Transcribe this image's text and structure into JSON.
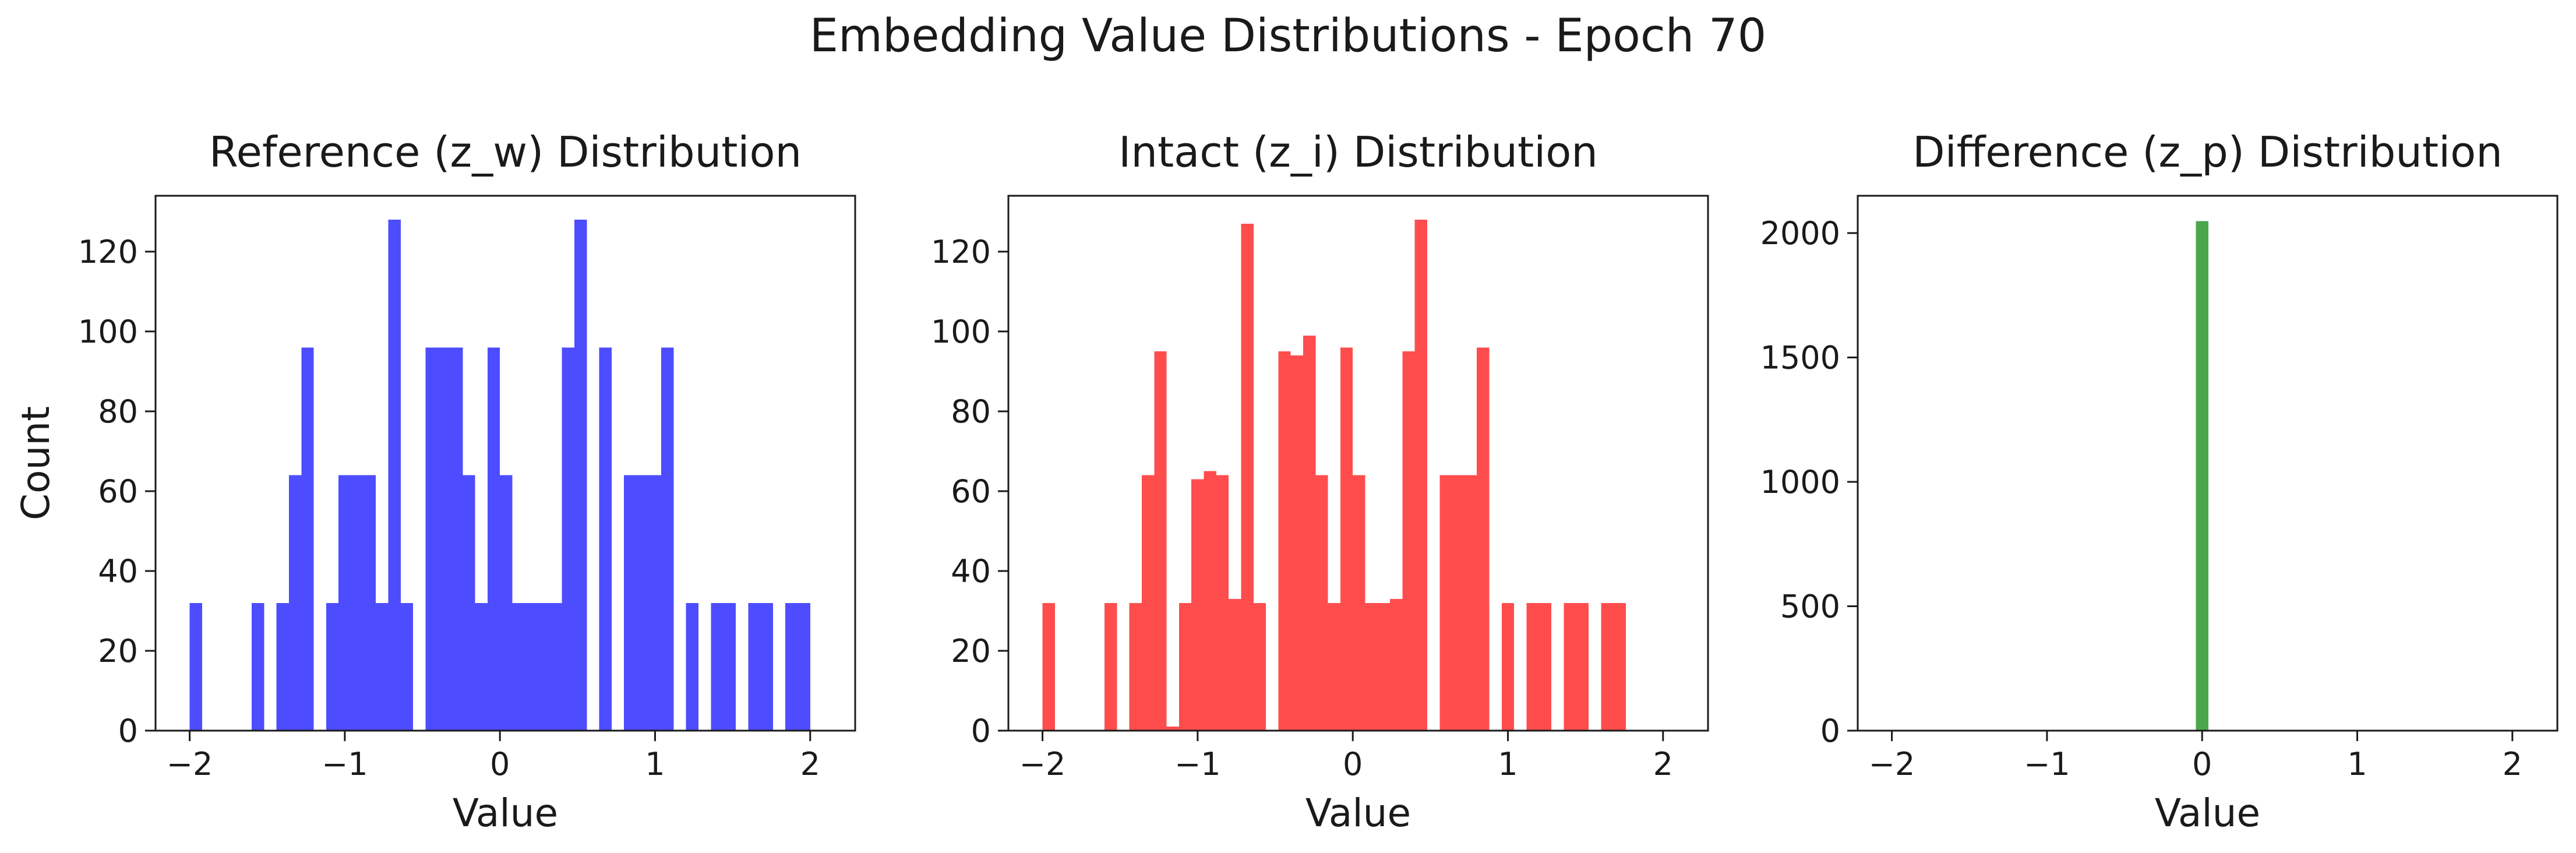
{
  "figure": {
    "title": "Embedding Value Distributions - Epoch 70"
  },
  "chart_data": [
    {
      "type": "bar",
      "title": "Reference (z_w) Distribution",
      "xlabel": "Value",
      "ylabel": "Count",
      "color": "#4d4dff",
      "xlim": [
        -2.22,
        2.29
      ],
      "ylim": [
        0,
        134
      ],
      "xticks": [
        -2,
        -1,
        0,
        1,
        2
      ],
      "yticks": [
        0,
        20,
        40,
        60,
        80,
        100,
        120
      ],
      "bin_start": -2.0,
      "bin_width": 0.08,
      "values": [
        32,
        0,
        0,
        0,
        0,
        32,
        0,
        32,
        64,
        96,
        0,
        32,
        64,
        64,
        64,
        32,
        128,
        32,
        0,
        96,
        96,
        96,
        64,
        32,
        96,
        64,
        32,
        32,
        32,
        32,
        96,
        128,
        0,
        96,
        0,
        64,
        64,
        64,
        96,
        0,
        32,
        0,
        32,
        32,
        0,
        32,
        32,
        0,
        32,
        32
      ],
      "grid": false,
      "legend": "none"
    },
    {
      "type": "bar",
      "title": "Intact (z_i) Distribution",
      "xlabel": "Value",
      "ylabel": "",
      "color": "#ff4d4d",
      "xlim": [
        -2.22,
        2.29
      ],
      "ylim": [
        0,
        134
      ],
      "xticks": [
        -2,
        -1,
        0,
        1,
        2
      ],
      "yticks": [
        0,
        20,
        40,
        60,
        80,
        100,
        120
      ],
      "bin_start": -2.0,
      "bin_width": 0.08,
      "values": [
        32,
        0,
        0,
        0,
        0,
        32,
        0,
        32,
        64,
        95,
        1,
        32,
        63,
        65,
        64,
        33,
        127,
        32,
        0,
        95,
        94,
        99,
        64,
        32,
        96,
        64,
        32,
        32,
        33,
        95,
        128,
        0,
        64,
        64,
        64,
        96,
        0,
        32,
        0,
        32,
        32,
        0,
        32,
        32,
        0,
        32,
        32
      ],
      "grid": false,
      "legend": "none"
    },
    {
      "type": "bar",
      "title": "Difference (z_p) Distribution",
      "xlabel": "Value",
      "ylabel": "",
      "color": "#4ca64c",
      "xlim": [
        -2.22,
        2.29
      ],
      "ylim": [
        0,
        2150
      ],
      "xticks": [
        -2,
        -1,
        0,
        1,
        2
      ],
      "yticks": [
        0,
        500,
        1000,
        1500,
        2000
      ],
      "bins": [
        {
          "x0": -0.04,
          "x1": 0.04,
          "count": 2048
        }
      ],
      "grid": false,
      "legend": "none"
    }
  ]
}
